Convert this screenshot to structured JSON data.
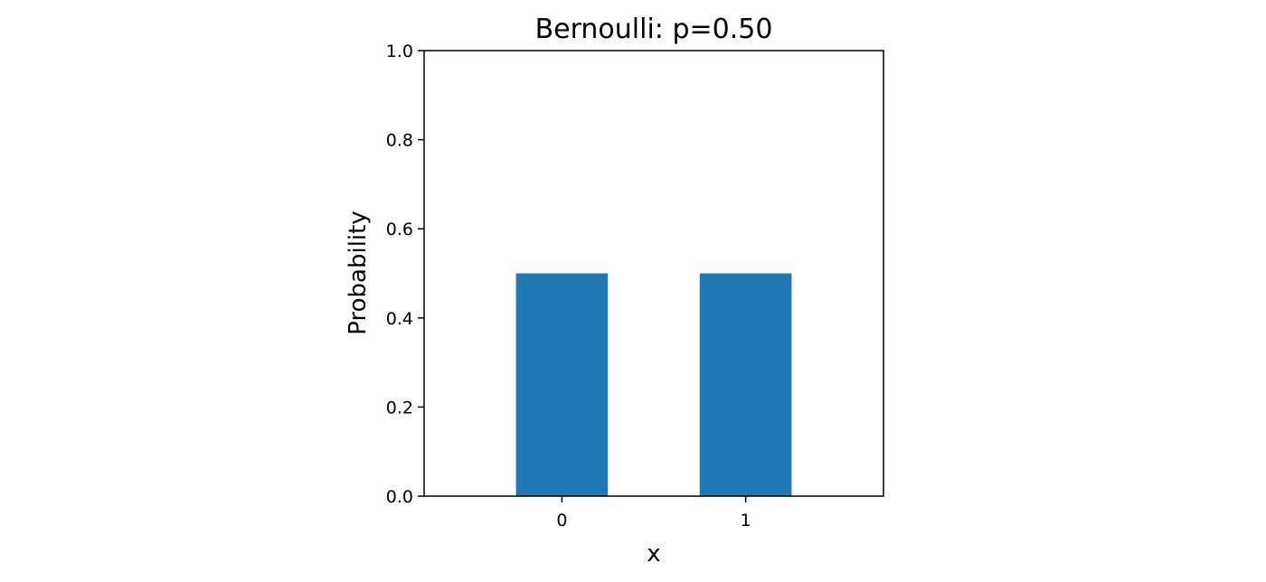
{
  "chart_data": {
    "type": "bar",
    "title": "Bernoulli: p=0.50",
    "xlabel": "x",
    "ylabel": "Probability",
    "categories": [
      "0",
      "1"
    ],
    "values": [
      0.5,
      0.5
    ],
    "ylim": [
      0,
      1.0
    ],
    "yticks": [
      "0.0",
      "0.2",
      "0.4",
      "0.6",
      "0.8",
      "1.0"
    ],
    "bar_color": "#1f77b4",
    "grid": false,
    "legend": "none"
  }
}
